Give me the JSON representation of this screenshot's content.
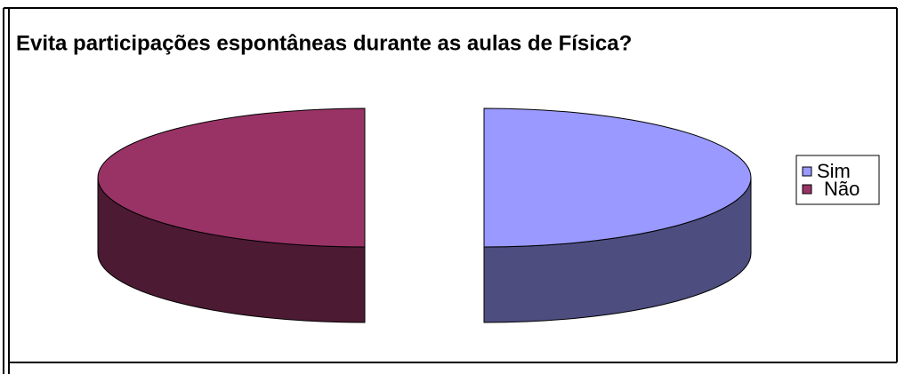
{
  "chart_data": {
    "type": "pie",
    "title": "Evita participações espontâneas durante as aulas de Física?",
    "categories": [
      "Sim",
      "Não"
    ],
    "values": [
      50,
      50
    ],
    "colors": [
      "#9999ff",
      "#993366"
    ],
    "legend": "right"
  }
}
